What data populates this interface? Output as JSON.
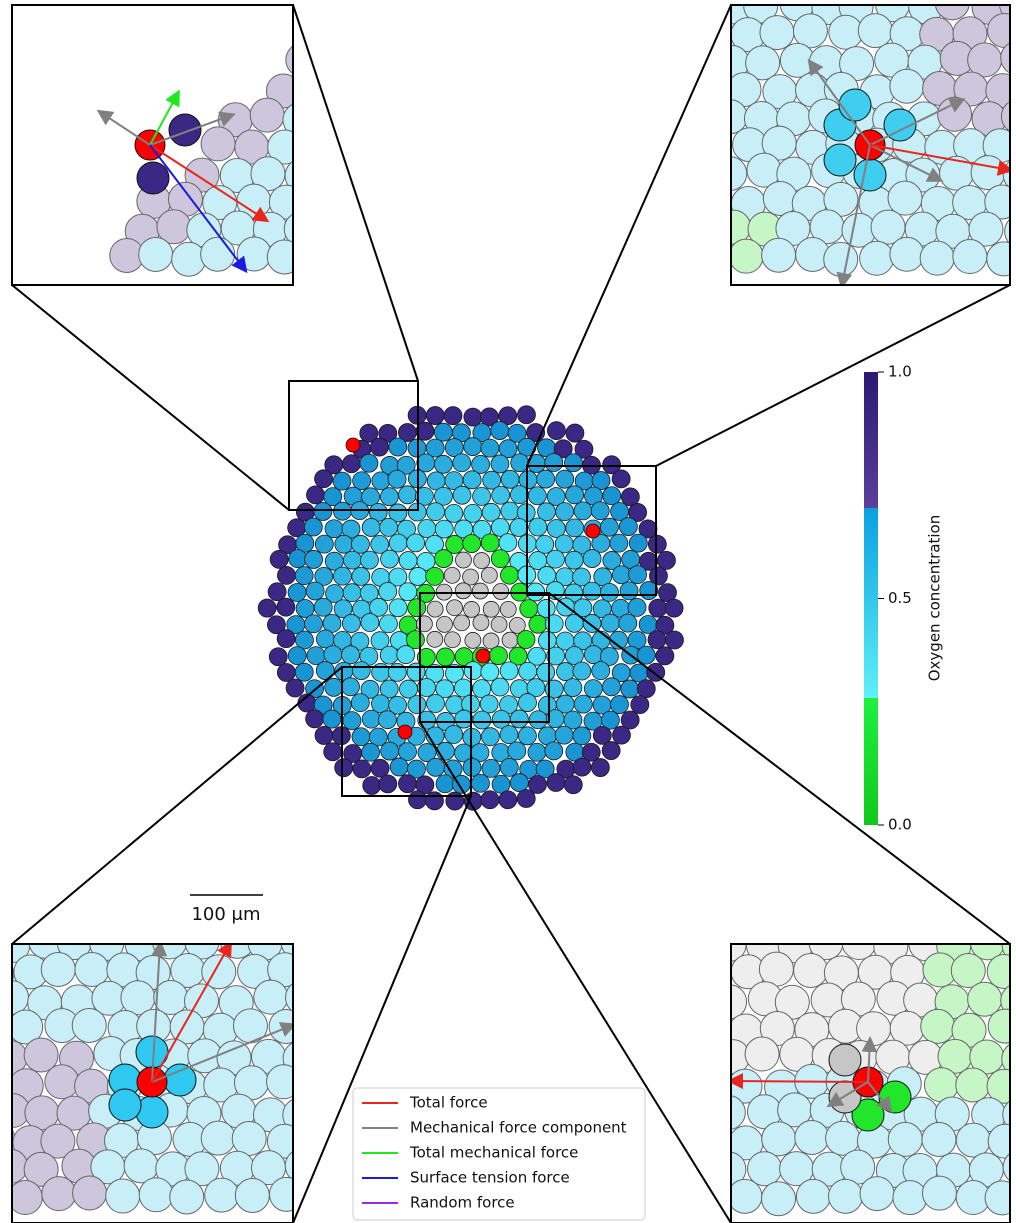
{
  "colorbar": {
    "label": "Oxygen concentration",
    "lim": [
      0,
      1
    ],
    "ticks": [
      {
        "value": 0,
        "label": "0.0"
      },
      {
        "value": 0.5,
        "label": "0.5"
      },
      {
        "value": 1,
        "label": "1.0"
      }
    ]
  },
  "scale_bar": {
    "label": "100 μm"
  },
  "legend": {
    "entries": [
      {
        "name": "Total force",
        "color": "#e8261e"
      },
      {
        "name": "Mechanical force component",
        "color": "#808080"
      },
      {
        "name": "Total mechanical force",
        "color": "#1ee81e"
      },
      {
        "name": "Surface tension force",
        "color": "#1a1ae0"
      },
      {
        "name": "Random force",
        "color": "#9a2be0"
      }
    ]
  }
}
